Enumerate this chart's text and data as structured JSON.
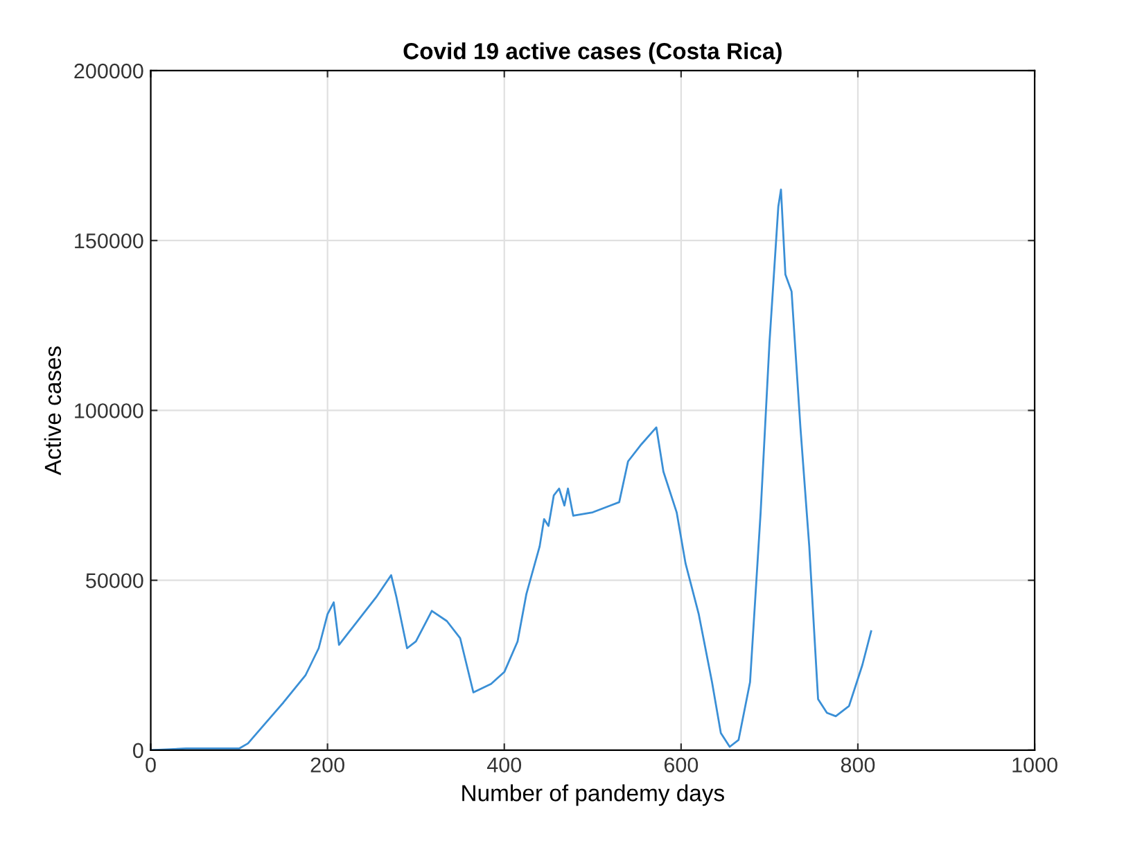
{
  "chart_data": {
    "type": "line",
    "title": "Covid 19 active cases (Costa Rica)",
    "xlabel": "Number of pandemy days",
    "ylabel": "Active cases",
    "xlim": [
      0,
      1000
    ],
    "xticks": [
      0,
      200,
      400,
      600,
      800,
      1000
    ],
    "ylim": [
      0,
      200000
    ],
    "yticks": [
      0,
      50000,
      100000,
      150000,
      200000
    ],
    "grid": true,
    "series": [
      {
        "color": "#3a8fd6",
        "x": [
          0,
          40,
          100,
          110,
          130,
          150,
          175,
          190,
          200,
          207,
          213,
          225,
          240,
          255,
          268,
          272,
          278,
          290,
          300,
          318,
          335,
          350,
          365,
          385,
          400,
          415,
          425,
          440,
          445,
          450,
          456,
          462,
          468,
          472,
          478,
          500,
          520,
          530,
          540,
          555,
          572,
          580,
          595,
          605,
          620,
          635,
          645,
          655,
          665,
          678,
          690,
          700,
          710,
          713,
          718,
          725,
          735,
          745,
          755,
          765,
          775,
          790,
          805,
          815
        ],
        "values": [
          0,
          500,
          500,
          2000,
          8000,
          14000,
          22000,
          30000,
          40000,
          43500,
          31000,
          35000,
          40000,
          45000,
          50000,
          51500,
          45000,
          30000,
          32000,
          41000,
          38000,
          33000,
          17000,
          19500,
          23000,
          32000,
          46000,
          60000,
          68000,
          66000,
          75000,
          77000,
          72000,
          77000,
          69000,
          70000,
          72000,
          73000,
          85000,
          90000,
          95000,
          82000,
          70000,
          55000,
          40000,
          20000,
          5000,
          1000,
          3000,
          20000,
          70000,
          120000,
          160000,
          165000,
          140000,
          135000,
          95000,
          60000,
          15000,
          11000,
          10000,
          13000,
          25000,
          35000
        ]
      }
    ]
  }
}
